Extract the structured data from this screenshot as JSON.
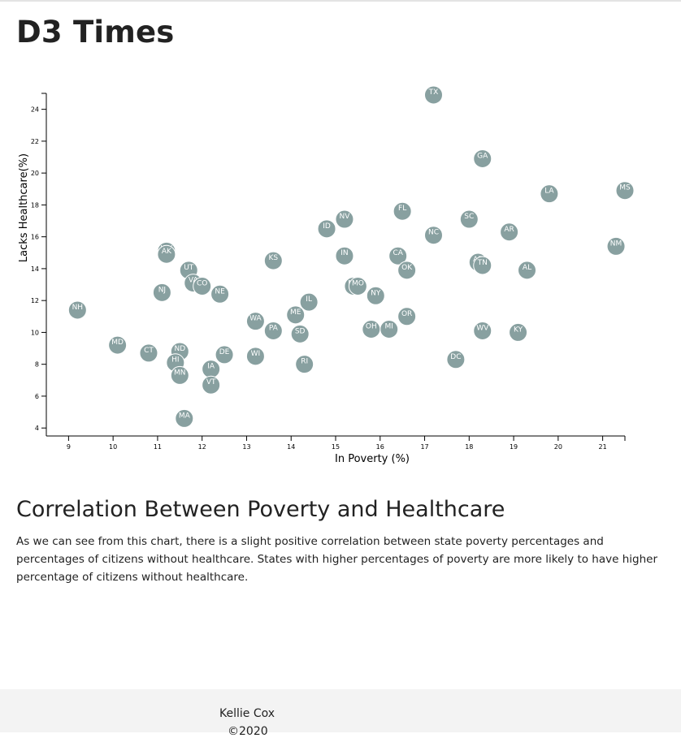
{
  "header": {
    "title": "D3 Times"
  },
  "chart_data": {
    "type": "scatter",
    "title": "",
    "xlabel": "In Poverty (%)",
    "ylabel": "Lacks Healthcare(%)",
    "xlim": [
      8.5,
      21.5
    ],
    "ylim": [
      3.5,
      25
    ],
    "x_ticks": [
      9,
      10,
      11,
      12,
      13,
      14,
      15,
      16,
      17,
      18,
      19,
      20,
      21
    ],
    "y_ticks": [
      4,
      6,
      8,
      10,
      12,
      14,
      16,
      18,
      20,
      22,
      24
    ],
    "grid": false,
    "marker_color": "#88a0a0",
    "label_color": "#ffffff",
    "points": [
      {
        "label": "TX",
        "x": 17.2,
        "y": 24.9
      },
      {
        "label": "GA",
        "x": 18.3,
        "y": 20.9
      },
      {
        "label": "MS",
        "x": 21.5,
        "y": 18.9
      },
      {
        "label": "LA",
        "x": 19.8,
        "y": 18.7
      },
      {
        "label": "FL",
        "x": 16.5,
        "y": 17.6
      },
      {
        "label": "NV",
        "x": 15.2,
        "y": 17.1
      },
      {
        "label": "SC",
        "x": 18.0,
        "y": 17.1
      },
      {
        "label": "ID",
        "x": 14.8,
        "y": 16.5
      },
      {
        "label": "AR",
        "x": 18.9,
        "y": 16.3
      },
      {
        "label": "NC",
        "x": 17.2,
        "y": 16.1
      },
      {
        "label": "NM",
        "x": 21.3,
        "y": 15.4
      },
      {
        "label": "WY",
        "x": 11.2,
        "y": 15.1
      },
      {
        "label": "AK",
        "x": 11.2,
        "y": 14.9
      },
      {
        "label": "IN",
        "x": 15.2,
        "y": 14.8
      },
      {
        "label": "CA",
        "x": 16.4,
        "y": 14.8
      },
      {
        "label": "KS",
        "x": 13.6,
        "y": 14.5
      },
      {
        "label": "AZ",
        "x": 18.2,
        "y": 14.4
      },
      {
        "label": "TN",
        "x": 18.3,
        "y": 14.2
      },
      {
        "label": "OK",
        "x": 16.6,
        "y": 13.9
      },
      {
        "label": "UT",
        "x": 11.7,
        "y": 13.9
      },
      {
        "label": "AL",
        "x": 19.3,
        "y": 13.9
      },
      {
        "label": "VA",
        "x": 11.8,
        "y": 13.1
      },
      {
        "label": "CO",
        "x": 12.0,
        "y": 12.9
      },
      {
        "label": "MT",
        "x": 15.4,
        "y": 12.9
      },
      {
        "label": "MO",
        "x": 15.5,
        "y": 12.9
      },
      {
        "label": "NJ",
        "x": 11.1,
        "y": 12.5
      },
      {
        "label": "NE",
        "x": 12.4,
        "y": 12.4
      },
      {
        "label": "NY",
        "x": 15.9,
        "y": 12.3
      },
      {
        "label": "IL",
        "x": 14.4,
        "y": 11.9
      },
      {
        "label": "NH",
        "x": 9.2,
        "y": 11.4
      },
      {
        "label": "ME",
        "x": 14.1,
        "y": 11.1
      },
      {
        "label": "OR",
        "x": 16.6,
        "y": 11.0
      },
      {
        "label": "WA",
        "x": 13.2,
        "y": 10.7
      },
      {
        "label": "MI",
        "x": 16.2,
        "y": 10.2
      },
      {
        "label": "OH",
        "x": 15.8,
        "y": 10.2
      },
      {
        "label": "PA",
        "x": 13.6,
        "y": 10.1
      },
      {
        "label": "WV",
        "x": 18.3,
        "y": 10.1
      },
      {
        "label": "KY",
        "x": 19.1,
        "y": 10.0
      },
      {
        "label": "SD",
        "x": 14.2,
        "y": 9.9
      },
      {
        "label": "MD",
        "x": 10.1,
        "y": 9.2
      },
      {
        "label": "CT",
        "x": 10.8,
        "y": 8.7
      },
      {
        "label": "ND",
        "x": 11.5,
        "y": 8.8
      },
      {
        "label": "DE",
        "x": 12.5,
        "y": 8.6
      },
      {
        "label": "WI",
        "x": 13.2,
        "y": 8.5
      },
      {
        "label": "DC",
        "x": 17.7,
        "y": 8.3
      },
      {
        "label": "HI",
        "x": 11.4,
        "y": 8.1
      },
      {
        "label": "RI",
        "x": 14.3,
        "y": 8.0
      },
      {
        "label": "IA",
        "x": 12.2,
        "y": 7.7
      },
      {
        "label": "MN",
        "x": 11.5,
        "y": 7.3
      },
      {
        "label": "VT",
        "x": 12.2,
        "y": 6.7
      },
      {
        "label": "MA",
        "x": 11.6,
        "y": 4.6
      }
    ]
  },
  "section": {
    "title": "Correlation Between Poverty and Healthcare",
    "body": "As we can see from this chart, there is a slight positive correlation between state poverty percentages and percentages of citizens without healthcare. States with higher percentages of poverty are more likely to have higher percentage of citizens without healthcare."
  },
  "footer": {
    "author": "Kellie Cox",
    "copyright": "©2020"
  }
}
